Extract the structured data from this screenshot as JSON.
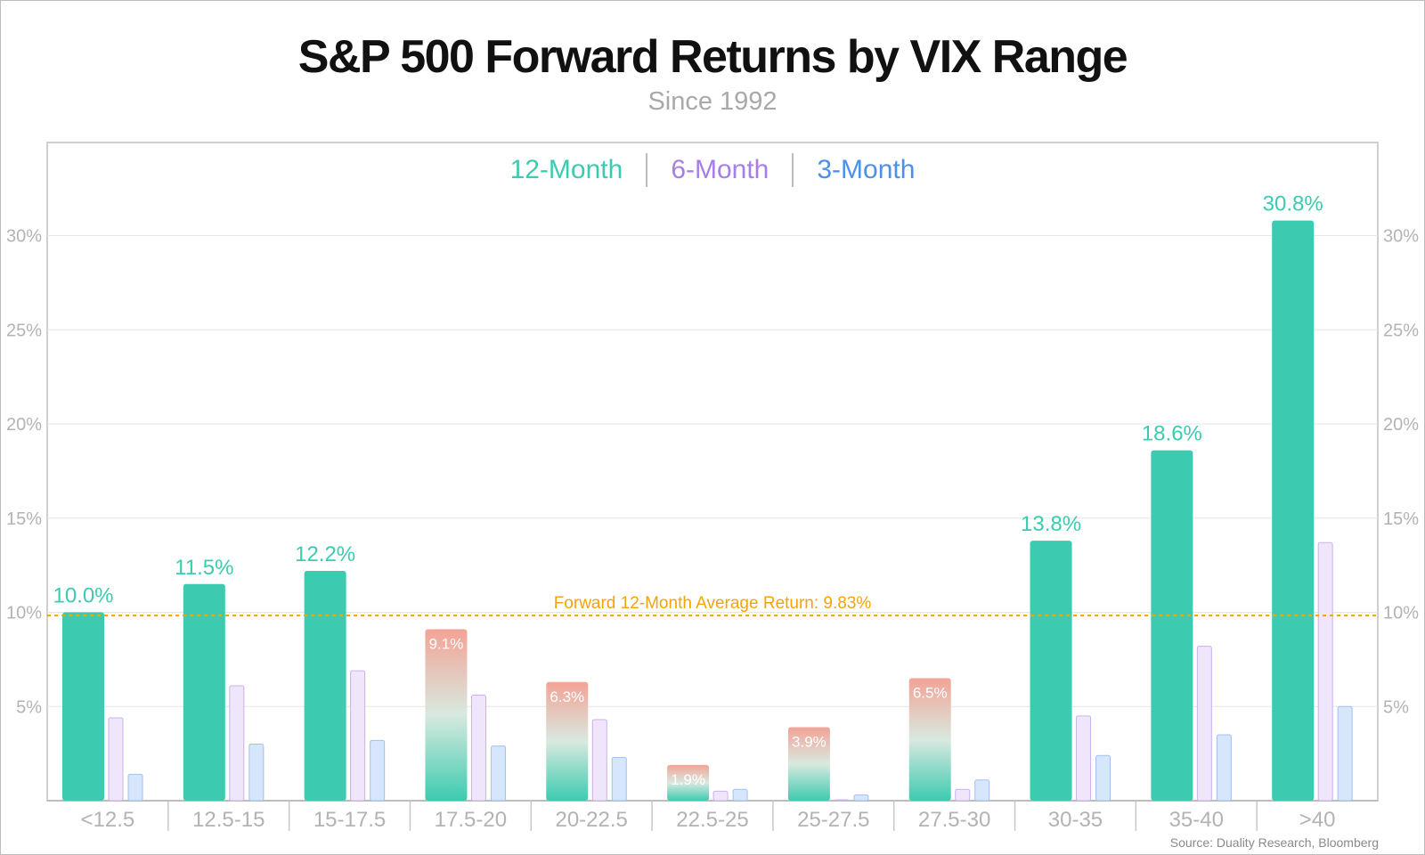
{
  "title": "S&P 500 Forward Returns by VIX Range",
  "subtitle": "Since 1992",
  "source": "Source: Duality Research, Bloomberg",
  "colors": {
    "m12": "#3ccbb0",
    "m6": "#a77ee8",
    "m6_fill": "#efe6fb",
    "m3": "#4e90e8",
    "m3_fill": "#d6e6fc",
    "below_avg_top": "#f3a396",
    "average_line": "#f5a30a",
    "grid": "#e6e6e6",
    "axis_text": "#b3b3b3"
  },
  "chart_data": {
    "type": "bar",
    "title": "S&P 500 Forward Returns by VIX Range",
    "subtitle": "Since 1992",
    "categories": [
      "<12.5",
      "12.5-15",
      "15-17.5",
      "17.5-20",
      "20-22.5",
      "22.5-25",
      "25-27.5",
      "27.5-30",
      "30-35",
      "35-40",
      ">40"
    ],
    "series": [
      {
        "name": "12-Month",
        "values": [
          10.0,
          11.5,
          12.2,
          9.1,
          6.3,
          1.9,
          3.9,
          6.5,
          13.8,
          18.6,
          30.8
        ]
      },
      {
        "name": "6-Month",
        "values": [
          4.4,
          6.1,
          6.9,
          5.6,
          4.3,
          0.5,
          0.0,
          0.6,
          4.5,
          8.2,
          13.7
        ]
      },
      {
        "name": "3-Month",
        "values": [
          1.4,
          3.0,
          3.2,
          2.9,
          2.3,
          0.6,
          0.3,
          1.1,
          2.4,
          3.5,
          5.0
        ]
      }
    ],
    "data_labels": [
      "10.0%",
      "11.5%",
      "12.2%",
      "9.1%",
      "6.3%",
      "1.9%",
      "3.9%",
      "6.5%",
      "13.8%",
      "18.6%",
      "30.8%"
    ],
    "ylim": [
      0,
      35
    ],
    "yticks": [
      5,
      10,
      15,
      20,
      25,
      30
    ],
    "ytick_labels": [
      "5%",
      "10%",
      "15%",
      "20%",
      "25%",
      "30%"
    ],
    "average": {
      "value": 9.83,
      "label": "Forward 12-Month Average Return: 9.83%"
    },
    "grid": true,
    "legend_position": "top-center"
  }
}
